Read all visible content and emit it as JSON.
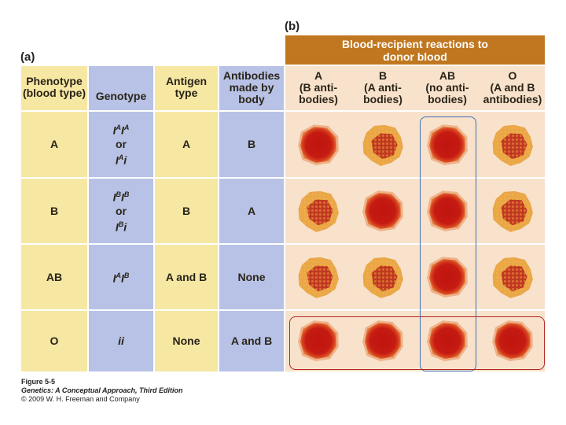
{
  "panel_labels": {
    "a": "(a)",
    "b": "(b)"
  },
  "reactions_header": "Blood-recipient reactions to donor blood",
  "columns": [
    {
      "title": "Phenotype (blood type)"
    },
    {
      "title": "Genotype"
    },
    {
      "title": "Antigen type"
    },
    {
      "title": "Antibodies made by body"
    }
  ],
  "recipient_columns": [
    {
      "title": "A",
      "sub": "(B anti-bodies)"
    },
    {
      "title": "B",
      "sub": "(A anti-bodies)"
    },
    {
      "title": "AB",
      "sub": "(no anti-bodies)"
    },
    {
      "title": "O",
      "sub": "(A and B antibodies)"
    }
  ],
  "rows": [
    {
      "phenotype": "A",
      "genotype_1": "I",
      "sup_1": "A",
      "genotype_2": "I",
      "sup_2": "A",
      "or": "or",
      "genotype_3": "I",
      "sup_3": "A",
      "genotype_4": "i",
      "antigen": "A",
      "antibodies": "B",
      "reactions": [
        "normal",
        "clumped",
        "normal",
        "clumped"
      ]
    },
    {
      "phenotype": "B",
      "genotype_1": "I",
      "sup_1": "B",
      "genotype_2": "I",
      "sup_2": "B",
      "or": "or",
      "genotype_3": "I",
      "sup_3": "B",
      "genotype_4": "i",
      "antigen": "B",
      "antibodies": "A",
      "reactions": [
        "clumped",
        "normal",
        "normal",
        "clumped"
      ]
    },
    {
      "phenotype": "AB",
      "genotype_1": "I",
      "sup_1": "A",
      "genotype_2": "I",
      "sup_2": "B",
      "antigen": "A and B",
      "antibodies": "None",
      "reactions": [
        "clumped",
        "clumped",
        "normal",
        "clumped"
      ]
    },
    {
      "phenotype": "O",
      "genotype_text": "ii",
      "antigen": "None",
      "antibodies": "A and B",
      "reactions": [
        "normal",
        "normal",
        "normal",
        "normal"
      ]
    }
  ],
  "caption": {
    "figure": "Figure 5-5",
    "book": "Genetics: A Conceptual Approach, Third Edition",
    "copyright": "© 2009 W. H. Freeman and Company"
  },
  "colors": {
    "header_brown": "#c0771f",
    "yellow_col": "#f6e7a3",
    "blue_col": "#b8c2e6",
    "reaction_bg": "#f8e2cc",
    "cell_red": "#c11a12",
    "highlight_blue": "#3d6fb5",
    "highlight_red": "#b3261e"
  }
}
